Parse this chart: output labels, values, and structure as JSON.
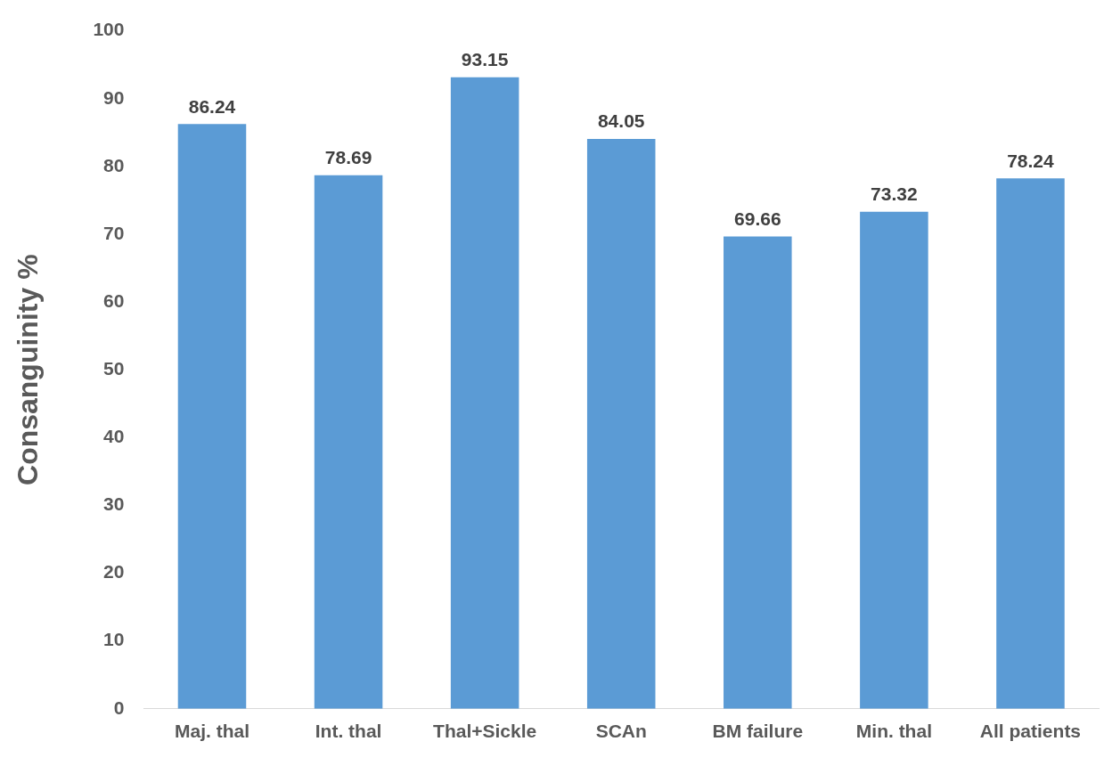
{
  "chart_data": {
    "type": "bar",
    "ylabel": "Consanguinity %",
    "categories": [
      "Maj. thal",
      "Int. thal",
      "Thal+Sickle",
      "SCAn",
      "BM failure",
      "Min. thal",
      "All patients"
    ],
    "values": [
      86.24,
      78.69,
      93.15,
      84.05,
      69.66,
      73.32,
      78.24
    ],
    "color": "#5b9bd5",
    "ylim": [
      0,
      100
    ],
    "yticks": [
      0,
      10,
      20,
      30,
      40,
      50,
      60,
      70,
      80,
      90,
      100
    ],
    "grid": false,
    "legend": false,
    "data_labels": true
  }
}
